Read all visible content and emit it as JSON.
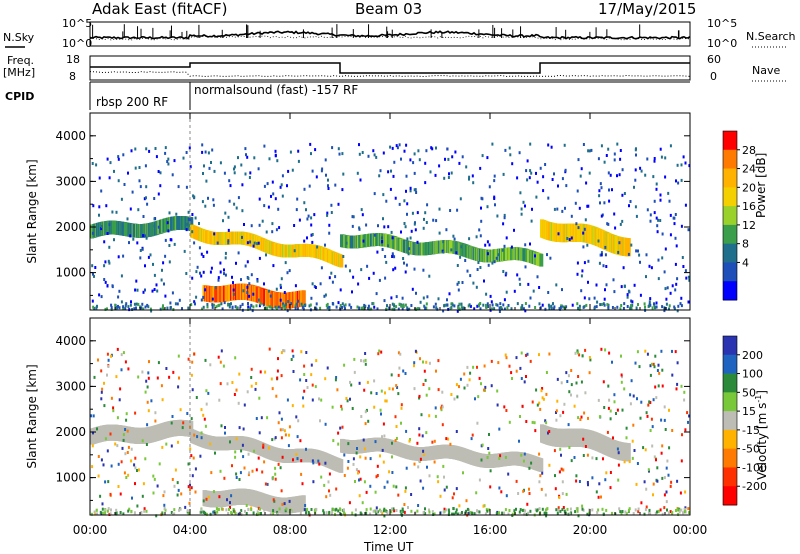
{
  "header": {
    "title": "Adak East (fitACF)",
    "beam": "Beam 03",
    "date": "17/May/2015"
  },
  "status_panels": {
    "nsky_label": "N.Sky",
    "nsearch_label": "N.Search",
    "noise_ticks_left": [
      "10^5",
      "10^0"
    ],
    "noise_ticks_right": [
      "10^5",
      "10^0"
    ],
    "freq_label": "Freq.",
    "freq_unit": "[MHz]",
    "freq_ticks": [
      "18",
      "8"
    ],
    "nave_label": "Nave",
    "nave_ticks": [
      "60",
      "0"
    ],
    "cpid_label": "CPID",
    "cpid_segments": [
      {
        "start_hour": 0,
        "end_hour": 4,
        "label": "rbsp 200 RF"
      },
      {
        "start_hour": 4,
        "end_hour": 24,
        "label": "normalsound (fast) -157 RF"
      }
    ]
  },
  "colorbars": {
    "power": {
      "title": "Power [dB]",
      "ticks": [
        "28",
        "24",
        "20",
        "16",
        "12",
        "8",
        "4"
      ],
      "colors": [
        "#ff0000",
        "#ff7a00",
        "#ffb300",
        "#f5d000",
        "#9ad12b",
        "#3a9e4a",
        "#1f6e8c",
        "#1e4fb8",
        "#0000ff"
      ]
    },
    "velocity": {
      "title": "Velocity [m s",
      "title_sup": "-1",
      "title_end": "]",
      "ticks": [
        "200",
        "100",
        "50",
        "15",
        "-15",
        "-50",
        "-100",
        "-200"
      ],
      "colors": [
        "#2a34b0",
        "#1e63c0",
        "#2a8a3a",
        "#78c83a",
        "#bdbdb5",
        "#ffb300",
        "#ff7a00",
        "#ff3000",
        "#ff0000"
      ]
    }
  },
  "chart_data": {
    "type": "heatmap",
    "xlabel": "Time UT",
    "x_ticks": [
      "00:00",
      "04:00",
      "08:00",
      "12:00",
      "16:00",
      "20:00",
      "00:00"
    ],
    "xlim_hours": [
      0,
      24
    ],
    "ylabel": "Slant Range [km]",
    "y_ticks": [
      "1000",
      "2000",
      "3000",
      "4000"
    ],
    "ylim_km": [
      180,
      4500
    ],
    "panels": [
      {
        "name": "power",
        "units": "dB",
        "scatter_echo_bands": [
          {
            "t_start": 0.0,
            "t_end": 4.0,
            "range_center_km": [
              1900,
              2050
            ],
            "width_km": 300,
            "value_db": 10
          },
          {
            "t_start": 4.0,
            "t_end": 10.0,
            "range_center_km": [
              1900,
              1300
            ],
            "width_km": 280,
            "value_db": 20
          },
          {
            "t_start": 10.0,
            "t_end": 18.0,
            "range_center_km": [
              1750,
              1300
            ],
            "width_km": 280,
            "value_db": 12
          },
          {
            "t_start": 18.0,
            "t_end": 21.5,
            "range_center_km": [
              2000,
              1600
            ],
            "width_km": 400,
            "value_db": 20
          },
          {
            "t_start": 4.5,
            "t_end": 8.5,
            "range_center_km": [
              600,
              400
            ],
            "width_km": 350,
            "value_db": 26
          }
        ]
      },
      {
        "name": "velocity",
        "units": "m/s",
        "scatter_echo_bands": [
          {
            "t_start": 0.0,
            "t_end": 4.0,
            "range_center_km": [
              1900,
              2050
            ],
            "width_km": 350,
            "value_ms": 0
          },
          {
            "t_start": 4.0,
            "t_end": 10.0,
            "range_center_km": [
              1900,
              1300
            ],
            "width_km": 300,
            "value_ms": 0
          },
          {
            "t_start": 10.0,
            "t_end": 18.0,
            "range_center_km": [
              1750,
              1300
            ],
            "width_km": 300,
            "value_ms": 0
          },
          {
            "t_start": 18.0,
            "t_end": 21.5,
            "range_center_km": [
              2000,
              1600
            ],
            "width_km": 400,
            "value_ms": 0
          },
          {
            "t_start": 4.5,
            "t_end": 8.5,
            "range_center_km": [
              600,
              400
            ],
            "width_km": 350,
            "value_ms": 0
          }
        ]
      }
    ],
    "grid": false
  }
}
